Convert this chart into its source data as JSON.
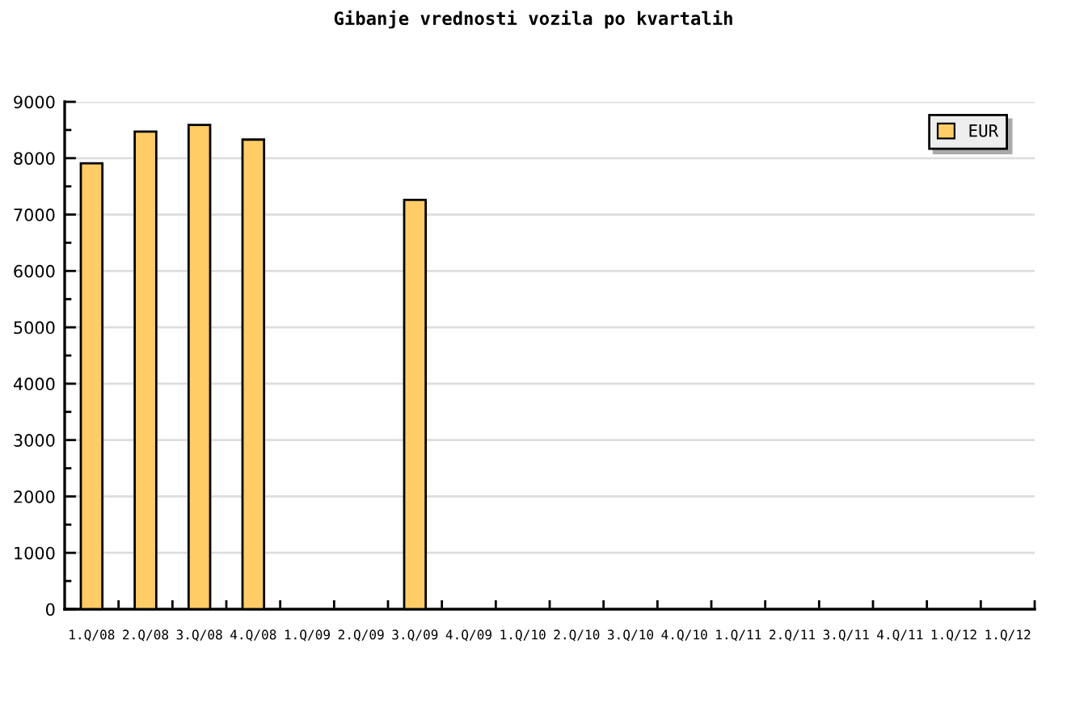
{
  "chart_data": {
    "type": "bar",
    "title": "Gibanje vrednosti vozila po kvartalih",
    "categories": [
      "1.Q/08",
      "2.Q/08",
      "3.Q/08",
      "4.Q/08",
      "1.Q/09",
      "2.Q/09",
      "3.Q/09",
      "4.Q/09",
      "1.Q/10",
      "2.Q/10",
      "3.Q/10",
      "4.Q/10",
      "1.Q/11",
      "2.Q/11",
      "3.Q/11",
      "4.Q/11",
      "1.Q/12",
      "1.Q/12"
    ],
    "series": [
      {
        "name": "EUR",
        "color": "#ffcc66",
        "values": [
          7910,
          8470,
          8590,
          8330,
          null,
          null,
          7260,
          null,
          null,
          null,
          null,
          null,
          null,
          null,
          null,
          null,
          null,
          null
        ]
      }
    ],
    "ylim": [
      0,
      9000
    ],
    "yticks": [
      0,
      {
        "value": 500,
        "label": null
      },
      1000,
      {
        "value": 1500,
        "label": null
      },
      2000,
      {
        "value": 2500,
        "label": null
      },
      3000,
      {
        "value": 3500,
        "label": null
      },
      4000,
      {
        "value": 4500,
        "label": null
      },
      5000,
      {
        "value": 5500,
        "label": null
      },
      6000,
      {
        "value": 6500,
        "label": null
      },
      7000,
      {
        "value": 7500,
        "label": null
      },
      8000,
      {
        "value": 8500,
        "label": null
      },
      9000
    ],
    "grid": "y",
    "legend": "top right"
  }
}
